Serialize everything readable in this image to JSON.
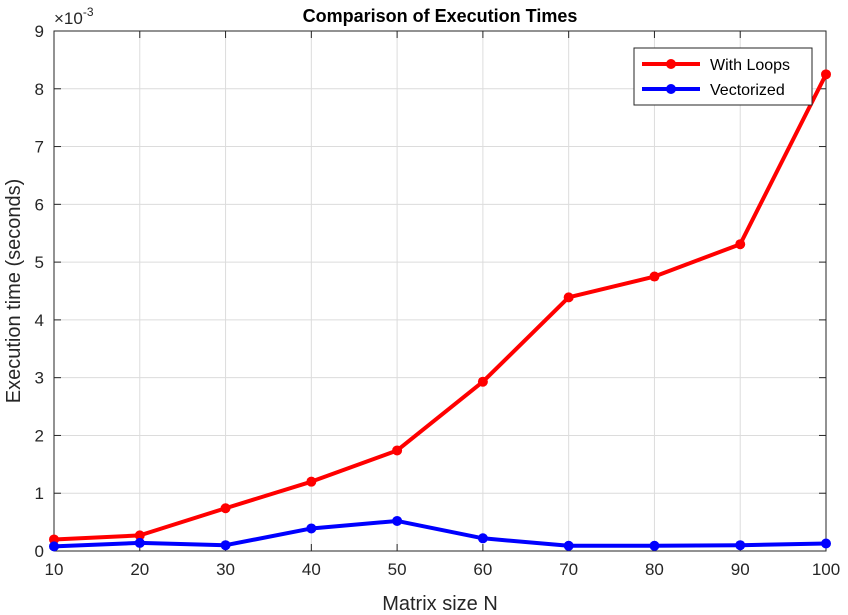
{
  "chart_data": {
    "type": "line",
    "title": "Comparison of Execution Times",
    "xlabel": "Matrix size N",
    "ylabel": "Execution time (seconds)",
    "y_exponent_base": "×10",
    "y_exponent_power": "-3",
    "xlim": [
      10,
      100
    ],
    "ylim": [
      0,
      9
    ],
    "x_ticks": [
      10,
      20,
      30,
      40,
      50,
      60,
      70,
      80,
      90,
      100
    ],
    "y_ticks": [
      0,
      1,
      2,
      3,
      4,
      5,
      6,
      7,
      8,
      9
    ],
    "x": [
      10,
      20,
      30,
      40,
      50,
      60,
      70,
      80,
      90,
      100
    ],
    "grid": true,
    "legend_position": "top-right",
    "series": [
      {
        "name": "With Loops",
        "color": "#ff0000",
        "values": [
          0.2,
          0.27,
          0.74,
          1.2,
          1.74,
          2.93,
          4.39,
          4.75,
          5.31,
          8.25
        ]
      },
      {
        "name": "Vectorized",
        "color": "#0000ff",
        "values": [
          0.08,
          0.14,
          0.1,
          0.39,
          0.52,
          0.22,
          0.09,
          0.09,
          0.1,
          0.13
        ]
      }
    ]
  }
}
